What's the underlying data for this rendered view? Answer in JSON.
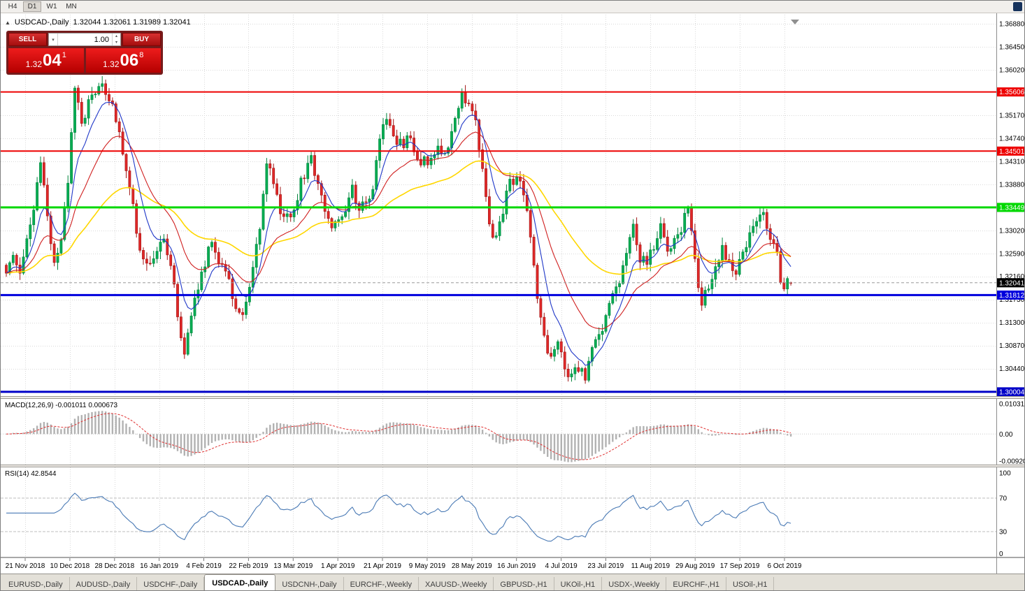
{
  "toolbar": {
    "periods": [
      "H4",
      "D1",
      "W1",
      "MN"
    ],
    "active_period": "D1"
  },
  "chart": {
    "title": "USDCAD-,Daily",
    "ohlc": "1.32044 1.32061 1.31989 1.32041"
  },
  "trade": {
    "sell_label": "SELL",
    "buy_label": "BUY",
    "volume": "1.00",
    "sell_price": {
      "prefix": "1.32",
      "big": "04",
      "sup": "1"
    },
    "buy_price": {
      "prefix": "1.32",
      "big": "06",
      "sup": "8"
    }
  },
  "price_axis": {
    "plain": [
      "1.36880",
      "1.36450",
      "1.36020",
      "1.35170",
      "1.34740",
      "1.34310",
      "1.33880",
      "1.33020",
      "1.32590",
      "1.32160",
      "1.31730",
      "1.31300",
      "1.30870",
      "1.30440"
    ]
  },
  "macd": {
    "label": "MACD(12,26,9) -0.001011 0.000673",
    "axis": [
      "0.010311",
      "0.00",
      "-0.009203"
    ]
  },
  "rsi": {
    "label": "RSI(14) 42.8544",
    "axis": [
      "100",
      "70",
      "30",
      "0"
    ]
  },
  "tabs": [
    {
      "label": "EURUSD-,Daily",
      "active": false
    },
    {
      "label": "AUDUSD-,Daily",
      "active": false
    },
    {
      "label": "USDCHF-,Daily",
      "active": false
    },
    {
      "label": "USDCAD-,Daily",
      "active": true
    },
    {
      "label": "USDCNH-,Daily",
      "active": false
    },
    {
      "label": "EURCHF-,Weekly",
      "active": false
    },
    {
      "label": "XAUUSD-,Weekly",
      "active": false
    },
    {
      "label": "GBPUSD-,H1",
      "active": false
    },
    {
      "label": "UKOil-,H1",
      "active": false
    },
    {
      "label": "USDX-,Weekly",
      "active": false
    },
    {
      "label": "EURCHF-,H1",
      "active": false
    },
    {
      "label": "USOil-,H1",
      "active": false
    }
  ],
  "chart_data": {
    "type": "candlestick",
    "symbol": "USDCAD-",
    "timeframe": "Daily",
    "count": 230,
    "seed": 13,
    "ohlc_current": {
      "open": 1.32044,
      "high": 1.32061,
      "low": 1.31989,
      "close": 1.32041
    },
    "current": {
      "price": 1.32041,
      "label": "1.32041",
      "badge_color": "#000000"
    },
    "price_axis": {
      "price_top": 1.37076,
      "price_bottom": 1.29925
    },
    "levels": [
      {
        "price": 1.35606,
        "label": "1.35606",
        "color": "#ee0000",
        "width": 2
      },
      {
        "price": 1.34501,
        "label": "1.34501",
        "color": "#ee0000",
        "width": 2
      },
      {
        "price": 1.33449,
        "label": "1.33449",
        "color": "#00d800",
        "width": 3
      },
      {
        "price": 1.31812,
        "label": "1.31812",
        "color": "#0000dd",
        "width": 3
      },
      {
        "price": 1.30004,
        "label": "1.30004",
        "color": "#0000c8",
        "width": 3
      }
    ],
    "mas": [
      {
        "period": 55,
        "color": "#ffd700",
        "width": 1.6,
        "name": "ma-slow"
      },
      {
        "period": 21,
        "color": "#d02020",
        "width": 1.1,
        "name": "ma-mid"
      },
      {
        "period": 8,
        "color": "#2038c8",
        "width": 1.1,
        "name": "ma-fast"
      }
    ],
    "macd_params": {
      "fast": 12,
      "slow": 26,
      "signal": 9,
      "main": -0.001011,
      "signal_value": 0.000673
    },
    "rsi_params": {
      "period": 14,
      "value": 42.8544
    },
    "dates": [
      "21 Nov 2018",
      "10 Dec 2018",
      "28 Dec 2018",
      "16 Jan 2019",
      "4 Feb 2019",
      "22 Feb 2019",
      "13 Mar 2019",
      "1 Apr 2019",
      "21 Apr 2019",
      "9 May 2019",
      "28 May 2019",
      "16 Jun 2019",
      "4 Jul 2019",
      "23 Jul 2019",
      "11 Aug 2019",
      "29 Aug 2019",
      "17 Sep 2019",
      "6 Oct 2019"
    ],
    "anchors": [
      [
        0,
        1.322
      ],
      [
        2,
        1.327
      ],
      [
        4,
        1.3245
      ],
      [
        6,
        1.331
      ],
      [
        8,
        1.3345
      ],
      [
        10,
        1.342
      ],
      [
        12,
        1.333
      ],
      [
        14,
        1.3245
      ],
      [
        16,
        1.3285
      ],
      [
        18,
        1.34
      ],
      [
        20,
        1.357
      ],
      [
        22,
        1.3505
      ],
      [
        24,
        1.3545
      ],
      [
        26,
        1.357
      ],
      [
        28,
        1.3595
      ],
      [
        30,
        1.356
      ],
      [
        33,
        1.348
      ],
      [
        36,
        1.339
      ],
      [
        39,
        1.327
      ],
      [
        42,
        1.325
      ],
      [
        45,
        1.3295
      ],
      [
        48,
        1.325
      ],
      [
        50,
        1.315
      ],
      [
        52,
        1.3085
      ],
      [
        54,
        1.3125
      ],
      [
        57,
        1.323
      ],
      [
        60,
        1.329
      ],
      [
        63,
        1.324
      ],
      [
        66,
        1.317
      ],
      [
        69,
        1.313
      ],
      [
        71,
        1.3185
      ],
      [
        74,
        1.3295
      ],
      [
        76,
        1.342
      ],
      [
        78,
        1.339
      ],
      [
        80,
        1.334
      ],
      [
        83,
        1.333
      ],
      [
        86,
        1.34
      ],
      [
        89,
        1.343
      ],
      [
        92,
        1.335
      ],
      [
        95,
        1.332
      ],
      [
        98,
        1.3335
      ],
      [
        101,
        1.338
      ],
      [
        103,
        1.333
      ],
      [
        105,
        1.3345
      ],
      [
        107,
        1.3395
      ],
      [
        109,
        1.3485
      ],
      [
        111,
        1.3505
      ],
      [
        114,
        1.3445
      ],
      [
        117,
        1.347
      ],
      [
        120,
        1.345
      ],
      [
        123,
        1.3435
      ],
      [
        126,
        1.347
      ],
      [
        129,
        1.3445
      ],
      [
        131,
        1.349
      ],
      [
        133,
        1.3545
      ],
      [
        135,
        1.355
      ],
      [
        137,
        1.35
      ],
      [
        139,
        1.342
      ],
      [
        141,
        1.3305
      ],
      [
        143,
        1.3285
      ],
      [
        145,
        1.333
      ],
      [
        147,
        1.339
      ],
      [
        149,
        1.34
      ],
      [
        151,
        1.337
      ],
      [
        153,
        1.329
      ],
      [
        155,
        1.318
      ],
      [
        157,
        1.309
      ],
      [
        159,
        1.306
      ],
      [
        161,
        1.308
      ],
      [
        163,
        1.305
      ],
      [
        165,
        1.3035
      ],
      [
        167,
        1.3048
      ],
      [
        169,
        1.3035
      ],
      [
        171,
        1.307
      ],
      [
        173,
        1.311
      ],
      [
        175,
        1.314
      ],
      [
        177,
        1.3165
      ],
      [
        179,
        1.3205
      ],
      [
        181,
        1.327
      ],
      [
        183,
        1.331
      ],
      [
        185,
        1.326
      ],
      [
        187,
        1.3235
      ],
      [
        189,
        1.327
      ],
      [
        191,
        1.331
      ],
      [
        193,
        1.327
      ],
      [
        195,
        1.329
      ],
      [
        197,
        1.331
      ],
      [
        199,
        1.334
      ],
      [
        201,
        1.3235
      ],
      [
        203,
        1.315
      ],
      [
        205,
        1.32
      ],
      [
        207,
        1.3235
      ],
      [
        209,
        1.327
      ],
      [
        211,
        1.325
      ],
      [
        213,
        1.3235
      ],
      [
        215,
        1.327
      ],
      [
        217,
        1.33
      ],
      [
        219,
        1.333
      ],
      [
        221,
        1.3345
      ],
      [
        223,
        1.33
      ],
      [
        225,
        1.325
      ],
      [
        226,
        1.3185
      ],
      [
        227,
        1.317
      ],
      [
        228,
        1.319
      ],
      [
        229,
        1.32041
      ]
    ],
    "palette": {
      "up": "#00ad52",
      "up_edge": "#00843c",
      "down": "#e02828",
      "down_edge": "#a01414",
      "macd_hist": "#b2b2b2",
      "macd_signal": "#e03030",
      "rsi": "#4a7ab5",
      "grid": "#d9d9d9"
    }
  }
}
